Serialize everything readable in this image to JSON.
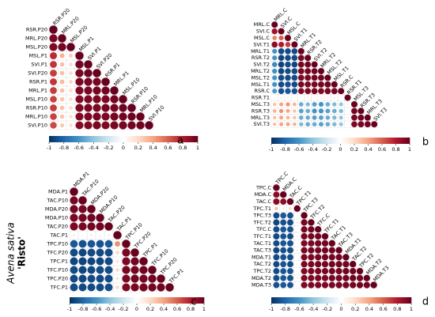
{
  "figure": {
    "species": "Avena sativa",
    "cultivar": "'Risto'"
  },
  "chart_data": [
    {
      "type": "corrplot",
      "panel": "a",
      "variables": [
        "RSR.P20",
        "MRL.P20",
        "MSL.P20",
        "MSL.P1",
        "SVI.P1",
        "SVI.P20",
        "RSR.P1",
        "MRL.P1",
        "MSL.P10",
        "RSR.P10",
        "MRL.P10",
        "SVI.P10"
      ],
      "matrix": [
        [
          1
        ],
        [
          0.95,
          1
        ],
        [
          0.93,
          0.96,
          1
        ],
        [
          0.75,
          0.35,
          0.25,
          1
        ],
        [
          0.72,
          0.3,
          0.2,
          0.97,
          1
        ],
        [
          0.7,
          0.3,
          0.2,
          0.96,
          0.98,
          1
        ],
        [
          0.72,
          0.32,
          0.22,
          0.95,
          0.96,
          0.95,
          1
        ],
        [
          0.7,
          0.3,
          0.2,
          0.94,
          0.95,
          0.96,
          0.97,
          1
        ],
        [
          0.68,
          0.28,
          0.2,
          0.93,
          0.94,
          0.95,
          0.94,
          0.96,
          1
        ],
        [
          0.7,
          0.3,
          0.2,
          0.94,
          0.95,
          0.94,
          0.96,
          0.95,
          0.97,
          1
        ],
        [
          0.68,
          0.28,
          0.18,
          0.93,
          0.94,
          0.95,
          0.94,
          0.96,
          0.97,
          0.98,
          1
        ],
        [
          0.66,
          0.26,
          0.18,
          0.92,
          0.93,
          0.95,
          0.93,
          0.95,
          0.96,
          0.97,
          0.98,
          1
        ]
      ],
      "clim": [
        -1,
        1
      ],
      "ticks": [
        -1,
        -0.8,
        -0.6,
        -0.4,
        -0.2,
        0,
        0.2,
        0.4,
        0.6,
        0.8,
        1
      ],
      "colormap": [
        "#053061",
        "#2166ac",
        "#4393c3",
        "#92c5de",
        "#d1e5f0",
        "#ffffff",
        "#fddbc7",
        "#f4a582",
        "#d6604d",
        "#b2182b",
        "#67001f"
      ]
    },
    {
      "type": "corrplot",
      "panel": "b",
      "variables": [
        "MRL.C",
        "SVI.C",
        "MSL.C",
        "SVI.T1",
        "MRL.T1",
        "RSR.T2",
        "SVI.T2",
        "MRL.T2",
        "MSL.T2",
        "MSL.T1",
        "RSR.C",
        "RSR.T1",
        "MSL.T3",
        "RSR.T3",
        "MRL.T3",
        "SVI.T3"
      ],
      "matrix": [
        [
          1
        ],
        [
          0.85,
          1
        ],
        [
          0.5,
          0.6,
          1
        ],
        [
          0.9,
          0.8,
          0.7,
          1
        ],
        [
          -0.6,
          -0.9,
          -0.9,
          -0.9,
          1
        ],
        [
          -0.6,
          -0.92,
          -0.9,
          -0.9,
          0.95,
          1
        ],
        [
          -0.65,
          -0.93,
          -0.9,
          -0.92,
          0.96,
          0.97,
          1
        ],
        [
          -0.62,
          -0.92,
          -0.9,
          -0.91,
          0.95,
          0.96,
          0.97,
          1
        ],
        [
          -0.6,
          -0.9,
          -0.9,
          -0.9,
          0.94,
          0.95,
          0.96,
          0.97,
          1
        ],
        [
          -0.6,
          -0.9,
          -0.88,
          -0.9,
          0.95,
          0.94,
          0.95,
          0.96,
          0.97,
          1
        ],
        [
          -0.58,
          -0.88,
          -0.86,
          -0.88,
          0.93,
          0.94,
          0.95,
          0.94,
          0.95,
          0.96,
          1
        ],
        [
          0.05,
          -0.1,
          0.1,
          0.05,
          -0.05,
          0.1,
          0.05,
          -0.1,
          0.05,
          0.1,
          -0.05,
          1
        ],
        [
          0.3,
          0.4,
          0.45,
          0.35,
          -0.5,
          -0.45,
          -0.55,
          -0.6,
          -0.5,
          -0.45,
          -0.4,
          0.1,
          1
        ],
        [
          0.35,
          0.45,
          0.4,
          0.3,
          -0.55,
          -0.5,
          -0.6,
          -0.6,
          -0.55,
          -0.5,
          -0.45,
          0.05,
          0.96,
          1
        ],
        [
          0.3,
          0.4,
          0.35,
          0.3,
          -0.5,
          -0.5,
          -0.55,
          -0.55,
          -0.5,
          -0.45,
          -0.4,
          0.1,
          0.95,
          0.97,
          1
        ],
        [
          0.3,
          0.4,
          0.4,
          0.35,
          -0.45,
          -0.5,
          -0.5,
          -0.55,
          -0.5,
          -0.45,
          -0.4,
          0.05,
          0.94,
          0.96,
          0.97,
          1
        ]
      ],
      "clim": [
        -1,
        1
      ],
      "ticks": [
        -1,
        -0.8,
        -0.6,
        -0.4,
        -0.2,
        0,
        0.2,
        0.4,
        0.6,
        0.8,
        1
      ],
      "colormap": [
        "#053061",
        "#2166ac",
        "#4393c3",
        "#92c5de",
        "#d1e5f0",
        "#ffffff",
        "#fddbc7",
        "#f4a582",
        "#d6604d",
        "#b2182b",
        "#67001f"
      ]
    },
    {
      "type": "corrplot",
      "panel": "c",
      "variables": [
        "MDA.P1",
        "TAC.P10",
        "MDA.P20",
        "MDA.P10",
        "TAC.P20",
        "TAC.P1",
        "TPC.P10",
        "TFC.P20",
        "TPC.P1",
        "TFC.P10",
        "TPC.P20",
        "TFC.P1"
      ],
      "matrix": [
        [
          1
        ],
        [
          0.95,
          1
        ],
        [
          0.96,
          0.95,
          1
        ],
        [
          0.95,
          0.96,
          0.97,
          1
        ],
        [
          0.94,
          0.95,
          0.96,
          0.97,
          1
        ],
        [
          0.1,
          0.05,
          0.1,
          0.05,
          0.1,
          1
        ],
        [
          -0.85,
          -0.88,
          -0.86,
          -0.87,
          -0.85,
          0.45,
          1
        ],
        [
          -0.9,
          -0.92,
          -0.9,
          -0.91,
          -0.9,
          0.2,
          0.95,
          1
        ],
        [
          -0.92,
          -0.93,
          -0.92,
          -0.92,
          -0.91,
          0.15,
          0.94,
          0.97,
          1
        ],
        [
          -0.9,
          -0.92,
          -0.91,
          -0.9,
          -0.9,
          0.2,
          0.95,
          0.96,
          0.97,
          1
        ],
        [
          -0.91,
          -0.92,
          -0.9,
          -0.91,
          -0.9,
          0.15,
          0.94,
          0.96,
          0.96,
          0.97,
          1
        ],
        [
          -0.9,
          -0.91,
          -0.9,
          -0.9,
          -0.89,
          0.2,
          0.93,
          0.95,
          0.96,
          0.96,
          0.97,
          1
        ]
      ],
      "clim": [
        -1,
        1
      ],
      "ticks": [
        -1,
        -0.8,
        -0.6,
        -0.4,
        -0.2,
        0,
        0.2,
        0.4,
        0.6,
        0.8,
        1
      ],
      "colormap": [
        "#053061",
        "#2166ac",
        "#4393c3",
        "#92c5de",
        "#d1e5f0",
        "#ffffff",
        "#fddbc7",
        "#f4a582",
        "#d6604d",
        "#b2182b",
        "#67001f"
      ]
    },
    {
      "type": "corrplot",
      "panel": "d",
      "variables": [
        "TPC.C",
        "MDA.C",
        "TAC.C",
        "TPC.T1",
        "TPC.T3",
        "TFC.T2",
        "TFC.C",
        "TFC.T1",
        "TAC.T1",
        "TAC.T3",
        "MDA.T1",
        "TAC.T2",
        "TPC.T2",
        "MDA.T2",
        "MDA.T3"
      ],
      "matrix": [
        [
          1
        ],
        [
          0.9,
          1
        ],
        [
          0.92,
          0.9,
          1
        ],
        [
          0.3,
          -0.1,
          0.2,
          1
        ],
        [
          -0.9,
          -0.85,
          -0.88,
          0.05,
          1
        ],
        [
          -0.92,
          -0.88,
          -0.9,
          0.1,
          0.96,
          1
        ],
        [
          -0.9,
          -0.86,
          -0.88,
          0.05,
          0.95,
          0.97,
          1
        ],
        [
          -0.91,
          -0.87,
          -0.9,
          0.1,
          0.95,
          0.96,
          0.97,
          1
        ],
        [
          -0.9,
          -0.86,
          -0.88,
          0.05,
          0.94,
          0.95,
          0.96,
          0.97,
          1
        ],
        [
          -0.92,
          -0.88,
          -0.9,
          0.1,
          0.95,
          0.96,
          0.96,
          0.97,
          0.97,
          1
        ],
        [
          -0.9,
          -0.87,
          -0.89,
          0.05,
          0.94,
          0.95,
          0.95,
          0.96,
          0.96,
          0.97,
          1
        ],
        [
          -0.91,
          -0.87,
          -0.9,
          0.1,
          0.95,
          0.95,
          0.96,
          0.96,
          0.97,
          0.97,
          0.97,
          1
        ],
        [
          -0.9,
          -0.86,
          -0.88,
          0.05,
          0.94,
          0.95,
          0.95,
          0.96,
          0.96,
          0.96,
          0.97,
          0.97,
          1
        ],
        [
          -0.89,
          -0.85,
          -0.88,
          0.1,
          0.93,
          0.94,
          0.95,
          0.95,
          0.96,
          0.96,
          0.96,
          0.97,
          0.97,
          1
        ],
        [
          -0.88,
          -0.85,
          -0.87,
          0.05,
          0.93,
          0.94,
          0.94,
          0.95,
          0.95,
          0.96,
          0.96,
          0.96,
          0.97,
          0.97,
          1
        ]
      ],
      "clim": [
        -1,
        1
      ],
      "ticks": [
        -1,
        -0.8,
        -0.6,
        -0.4,
        -0.2,
        0,
        0.2,
        0.4,
        0.6,
        0.8,
        1
      ],
      "colormap": [
        "#053061",
        "#2166ac",
        "#4393c3",
        "#92c5de",
        "#d1e5f0",
        "#ffffff",
        "#fddbc7",
        "#f4a582",
        "#d6604d",
        "#b2182b",
        "#67001f"
      ]
    }
  ]
}
